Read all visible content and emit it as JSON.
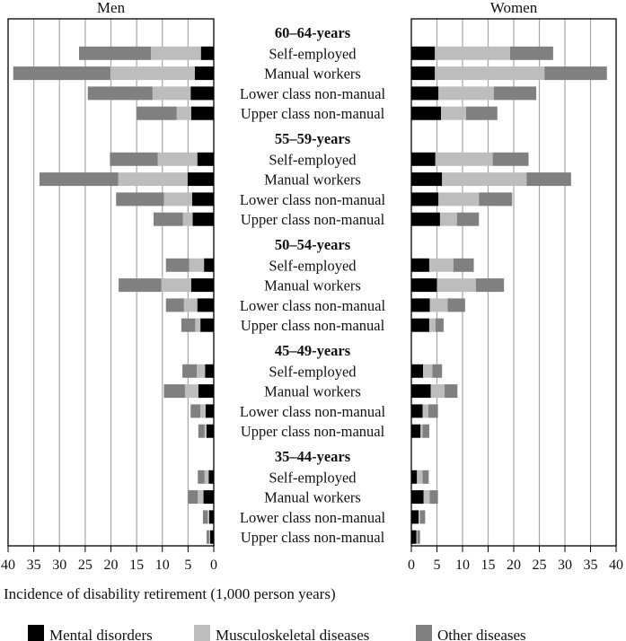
{
  "chart_data": {
    "type": "bar",
    "orientation": "horizontal-stacked-back-to-back",
    "xlabel": "Incidence of disability retirement (1,000 person years)",
    "xlim": [
      0,
      40
    ],
    "xticks": [
      0,
      5,
      10,
      15,
      20,
      25,
      30,
      35,
      40
    ],
    "grid": true,
    "legend_position": "bottom",
    "panels": [
      {
        "key": "men",
        "title": "Men",
        "direction": "reversed"
      },
      {
        "key": "women",
        "title": "Women",
        "direction": "normal"
      }
    ],
    "series": [
      {
        "name": "Mental disorders",
        "color": "#000000"
      },
      {
        "name": "Musculoskeletal diseases",
        "color": "#bdbdbd"
      },
      {
        "name": "Other diseases",
        "color": "#808080"
      }
    ],
    "groups": [
      {
        "label": "60–64-years",
        "rows": [
          {
            "label": "Self-employed",
            "men": [
              2.5,
              9.7,
              14.0
            ],
            "women": [
              4.6,
              14.7,
              8.4
            ]
          },
          {
            "label": "Manual workers",
            "men": [
              3.7,
              16.4,
              18.9
            ],
            "women": [
              4.6,
              21.4,
              12.2
            ]
          },
          {
            "label": "Lower class non-manual",
            "men": [
              4.5,
              7.4,
              12.6
            ],
            "women": [
              5.3,
              10.8,
              8.3
            ]
          },
          {
            "label": "Upper class non-manual",
            "men": [
              4.4,
              2.8,
              7.8
            ],
            "women": [
              5.8,
              4.9,
              6.1
            ]
          }
        ]
      },
      {
        "label": "55–59-years",
        "rows": [
          {
            "label": "Self-employed",
            "men": [
              3.2,
              7.7,
              9.3
            ],
            "women": [
              4.7,
              11.2,
              7.0
            ]
          },
          {
            "label": "Manual workers",
            "men": [
              5.1,
              13.5,
              15.3
            ],
            "women": [
              6.0,
              16.5,
              8.7
            ]
          },
          {
            "label": "Lower class non-manual",
            "men": [
              4.2,
              5.5,
              9.3
            ],
            "women": [
              5.3,
              7.9,
              6.5
            ]
          },
          {
            "label": "Upper class non-manual",
            "men": [
              4.1,
              1.9,
              5.7
            ],
            "women": [
              5.6,
              3.3,
              4.3
            ]
          }
        ]
      },
      {
        "label": "50–54-years",
        "rows": [
          {
            "label": "Self-employed",
            "men": [
              1.9,
              2.9,
              4.5
            ],
            "women": [
              3.5,
              4.7,
              4.0
            ]
          },
          {
            "label": "Manual workers",
            "men": [
              4.4,
              5.8,
              8.3
            ],
            "women": [
              5.0,
              7.6,
              5.5
            ]
          },
          {
            "label": "Lower class non-manual",
            "men": [
              3.2,
              2.6,
              3.5
            ],
            "women": [
              3.6,
              3.5,
              3.4
            ]
          },
          {
            "label": "Upper class non-manual",
            "men": [
              2.6,
              1.0,
              2.7
            ],
            "women": [
              3.5,
              1.2,
              1.6
            ]
          }
        ]
      },
      {
        "label": "45–49-years",
        "rows": [
          {
            "label": "Self-employed",
            "men": [
              1.7,
              1.6,
              2.8
            ],
            "women": [
              2.3,
              1.8,
              1.9
            ]
          },
          {
            "label": "Manual workers",
            "men": [
              3.0,
              2.6,
              4.1
            ],
            "women": [
              3.8,
              2.7,
              2.5
            ]
          },
          {
            "label": "Lower class non-manual",
            "men": [
              1.6,
              1.0,
              1.9
            ],
            "women": [
              2.2,
              1.1,
              1.9
            ]
          },
          {
            "label": "Upper class non-manual",
            "men": [
              1.4,
              0.4,
              1.2
            ],
            "women": [
              1.8,
              0.4,
              1.3
            ]
          }
        ]
      },
      {
        "label": "35–44-years",
        "rows": [
          {
            "label": "Self-employed",
            "men": [
              1.0,
              0.8,
              1.3
            ],
            "women": [
              1.1,
              1.1,
              1.2
            ]
          },
          {
            "label": "Manual workers",
            "men": [
              2.0,
              1.1,
              1.9
            ],
            "women": [
              2.4,
              1.2,
              1.6
            ]
          },
          {
            "label": "Lower class non-manual",
            "men": [
              0.9,
              0.3,
              0.9
            ],
            "women": [
              1.4,
              0.3,
              1.0
            ]
          },
          {
            "label": "Upper class non-manual",
            "men": [
              0.7,
              0.2,
              0.5
            ],
            "women": [
              1.0,
              0.2,
              0.5
            ]
          }
        ]
      }
    ]
  }
}
